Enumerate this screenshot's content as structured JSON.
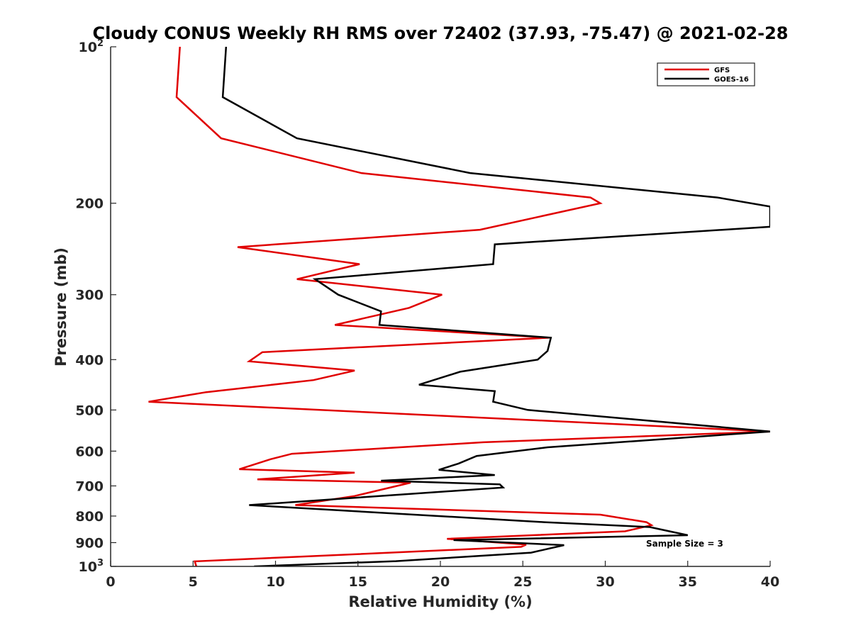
{
  "chart_data": {
    "type": "line",
    "title": "Cloudy CONUS Weekly RH RMS over 72402 (37.93, -75.47) @ 2021-02-28",
    "xlabel": "Relative Humidity (%)",
    "ylabel": "Pressure (mb)",
    "xlim": [
      0,
      40
    ],
    "ylim": [
      100,
      1000
    ],
    "yscale": "log",
    "y_reversed": true,
    "x_ticks": [
      "0",
      "5",
      "10",
      "15",
      "20",
      "25",
      "30",
      "35",
      "40"
    ],
    "y_ticks": [
      {
        "value": 100,
        "base": "10",
        "exp": "2"
      },
      {
        "value": 200,
        "label": "200"
      },
      {
        "value": 300,
        "label": "300"
      },
      {
        "value": 400,
        "label": "400"
      },
      {
        "value": 500,
        "label": "500"
      },
      {
        "value": 600,
        "label": "600"
      },
      {
        "value": 700,
        "label": "700"
      },
      {
        "value": 800,
        "label": "800"
      },
      {
        "value": 900,
        "label": "900"
      },
      {
        "value": 1000,
        "base": "10",
        "exp": "3"
      }
    ],
    "legend_position": "top-right",
    "annotation": "Sample Size = 3",
    "grid": false,
    "series": [
      {
        "name": "GFS",
        "color": "#e00000",
        "points": [
          [
            4.2,
            100
          ],
          [
            4.0,
            125
          ],
          [
            6.7,
            150
          ],
          [
            15.2,
            175
          ],
          [
            29.1,
            195
          ],
          [
            29.7,
            200
          ],
          [
            22.4,
            225
          ],
          [
            7.7,
            243
          ],
          [
            15.1,
            262
          ],
          [
            11.3,
            280
          ],
          [
            20.1,
            300
          ],
          [
            18.1,
            318
          ],
          [
            13.6,
            343
          ],
          [
            26.6,
            363
          ],
          [
            9.2,
            387
          ],
          [
            8.4,
            403
          ],
          [
            14.8,
            420
          ],
          [
            12.3,
            438
          ],
          [
            5.8,
            462
          ],
          [
            2.3,
            482
          ],
          [
            40.0,
            550
          ],
          [
            22.6,
            577
          ],
          [
            11.0,
            607
          ],
          [
            9.7,
            622
          ],
          [
            7.8,
            650
          ],
          [
            14.8,
            660
          ],
          [
            8.9,
            680
          ],
          [
            18.2,
            690
          ],
          [
            14.8,
            732
          ],
          [
            11.2,
            762
          ],
          [
            29.7,
            795
          ],
          [
            32.5,
            822
          ],
          [
            32.8,
            833
          ],
          [
            31.2,
            856
          ],
          [
            20.4,
            885
          ],
          [
            25.2,
            908
          ],
          [
            24.9,
            917
          ],
          [
            5.1,
            978
          ],
          [
            5.2,
            1000
          ]
        ]
      },
      {
        "name": "GOES-16",
        "color": "#000000",
        "points": [
          [
            7.0,
            100
          ],
          [
            6.8,
            125
          ],
          [
            11.3,
            150
          ],
          [
            21.8,
            175
          ],
          [
            36.8,
            195
          ],
          [
            40.0,
            203
          ],
          [
            40.0,
            222
          ],
          [
            23.3,
            240
          ],
          [
            23.2,
            262
          ],
          [
            12.4,
            280
          ],
          [
            13.8,
            300
          ],
          [
            16.4,
            323
          ],
          [
            16.3,
            343
          ],
          [
            26.7,
            363
          ],
          [
            26.5,
            385
          ],
          [
            25.9,
            400
          ],
          [
            21.2,
            422
          ],
          [
            18.7,
            447
          ],
          [
            23.3,
            460
          ],
          [
            23.2,
            482
          ],
          [
            25.3,
            500
          ],
          [
            40.0,
            550
          ],
          [
            26.5,
            590
          ],
          [
            22.2,
            613
          ],
          [
            21.1,
            634
          ],
          [
            19.9,
            652
          ],
          [
            23.3,
            667
          ],
          [
            16.4,
            684
          ],
          [
            23.6,
            695
          ],
          [
            23.8,
            705
          ],
          [
            8.4,
            762
          ],
          [
            26.3,
            822
          ],
          [
            32.7,
            840
          ],
          [
            35.0,
            871
          ],
          [
            20.8,
            890
          ],
          [
            27.5,
            910
          ],
          [
            25.5,
            941
          ],
          [
            17.3,
            977
          ],
          [
            8.7,
            1000
          ]
        ]
      }
    ]
  }
}
